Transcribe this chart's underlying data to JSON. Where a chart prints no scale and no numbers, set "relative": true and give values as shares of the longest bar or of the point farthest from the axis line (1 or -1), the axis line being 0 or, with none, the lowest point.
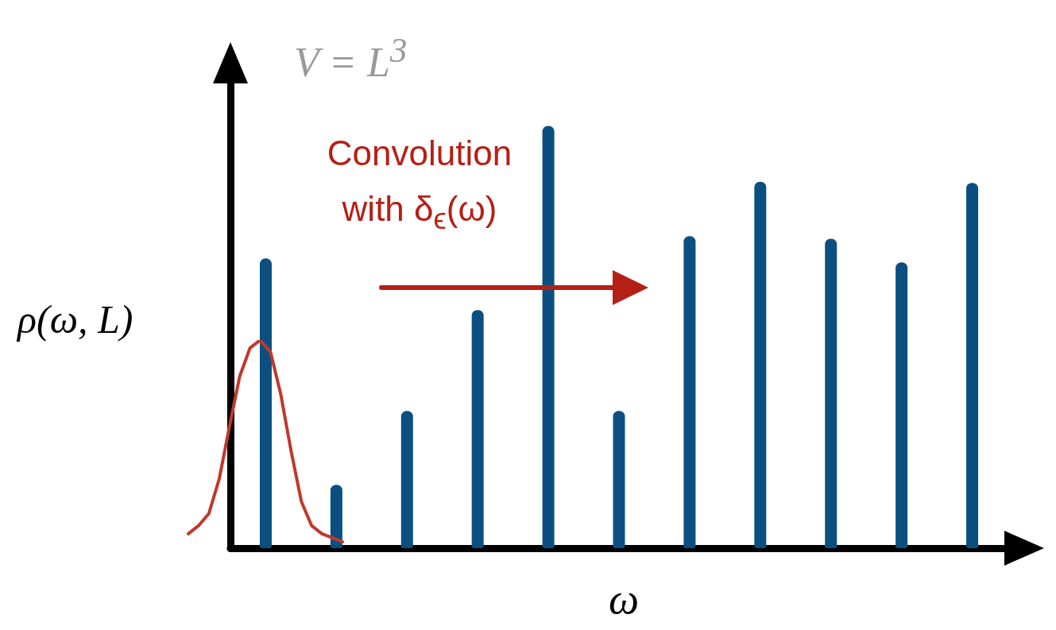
{
  "chart_data": [
    {
      "type": "bar",
      "relative": true,
      "xlabel": "ω",
      "ylabel": "ρ(ω, L)",
      "annotations": [
        "V = L$^{3}$",
        "Convolution with δ$_{ϵ}$(ω)"
      ],
      "categories": [
        null,
        null,
        null,
        null,
        null,
        null,
        null,
        null,
        null,
        null,
        null
      ],
      "color": "#0b4f80",
      "values": [
        0.686,
        0.15,
        0.325,
        0.564,
        1,
        0.325,
        0.739,
        0.868,
        0.733,
        0.677,
        0.865
      ]
    },
    {
      "type": "line",
      "relative": true,
      "marker": "none",
      "categories": [
        null,
        null,
        null,
        null,
        null,
        null,
        null,
        null,
        null,
        null,
        null,
        null,
        null,
        null,
        null,
        null
      ],
      "series": [
        {
          "color": "#c0392b",
          "values": [
            0.04,
            0.08,
            0.14,
            0.31,
            0.57,
            0.82,
            0.96,
            1,
            0.94,
            0.73,
            0.45,
            0.2,
            0.08,
            0.04,
            0.02,
            0
          ]
        }
      ]
    }
  ]
}
